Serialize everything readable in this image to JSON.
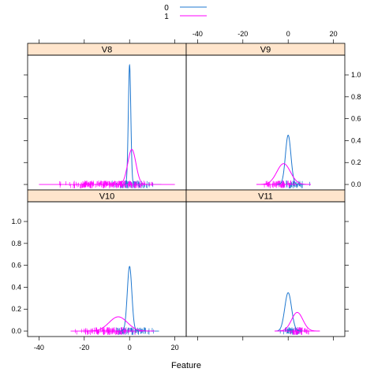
{
  "chart_data": {
    "type": "line",
    "xlabel": "Feature",
    "ylabel": "",
    "xlim": [
      -45,
      25
    ],
    "ylim": [
      -0.05,
      1.18
    ],
    "x_ticks": [
      -40,
      -20,
      0,
      20
    ],
    "y_ticks": [
      0.0,
      0.2,
      0.4,
      0.6,
      0.8,
      1.0
    ],
    "legend": {
      "placement": "top-center",
      "entries": [
        {
          "label": "0",
          "color": "#1f78d0"
        },
        {
          "label": "1",
          "color": "#ff00ff"
        }
      ]
    },
    "colors": {
      "class0": "#1f78d0",
      "class1": "#ff00ff",
      "strip_bg": "#ffe5cc"
    },
    "panels": [
      {
        "name": "V8",
        "series": [
          {
            "class": "0",
            "peak_x": 0.0,
            "peak_y": 1.09,
            "sd": 0.55
          },
          {
            "class": "1",
            "peak_x": 1.0,
            "peak_y": 0.32,
            "sd": 1.8
          }
        ],
        "rug": [
          {
            "class": "0",
            "from": -10,
            "to": 14
          },
          {
            "class": "1",
            "from": -40,
            "to": 20
          }
        ]
      },
      {
        "name": "V9",
        "series": [
          {
            "class": "0",
            "peak_x": 0.0,
            "peak_y": 0.45,
            "sd": 1.2
          },
          {
            "class": "1",
            "peak_x": -2.0,
            "peak_y": 0.19,
            "sd": 3.0
          }
        ],
        "rug": [
          {
            "class": "0",
            "from": -5,
            "to": 10
          },
          {
            "class": "1",
            "from": -13,
            "to": 5
          }
        ]
      },
      {
        "name": "V10",
        "series": [
          {
            "class": "0",
            "peak_x": 0.0,
            "peak_y": 0.59,
            "sd": 1.0
          },
          {
            "class": "1",
            "peak_x": -5.0,
            "peak_y": 0.13,
            "sd": 4.0
          }
        ],
        "rug": [
          {
            "class": "0",
            "from": -10,
            "to": 13
          },
          {
            "class": "1",
            "from": -26,
            "to": 6
          }
        ]
      },
      {
        "name": "V11",
        "series": [
          {
            "class": "0",
            "peak_x": 0.0,
            "peak_y": 0.35,
            "sd": 1.5
          },
          {
            "class": "1",
            "peak_x": 4.0,
            "peak_y": 0.17,
            "sd": 2.5
          }
        ],
        "rug": [
          {
            "class": "0",
            "from": -5,
            "to": 8
          },
          {
            "class": "1",
            "from": -3,
            "to": 12
          }
        ]
      }
    ]
  }
}
